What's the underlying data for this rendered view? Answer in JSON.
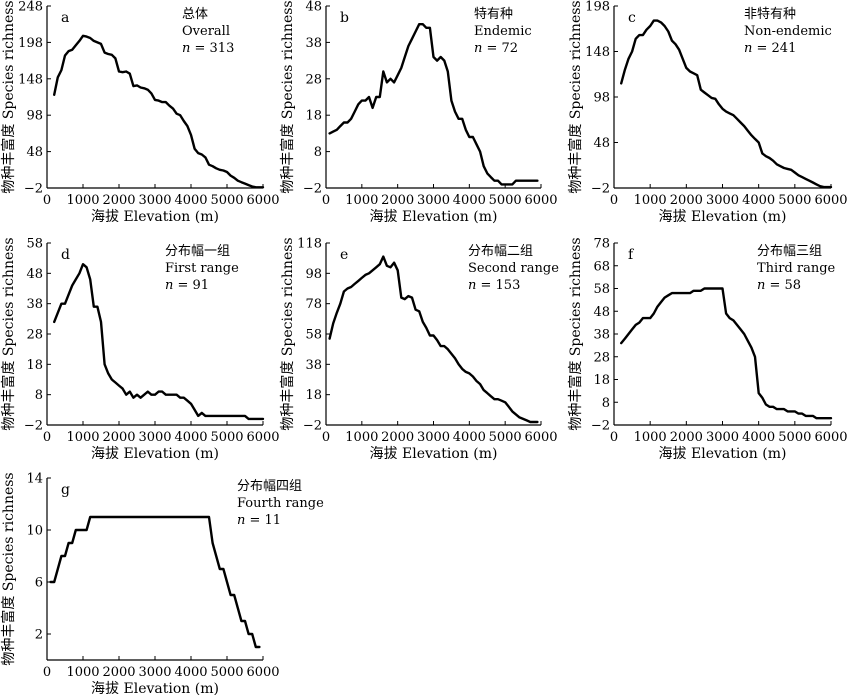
{
  "chart_data": [
    {
      "type": "line",
      "panel": "a",
      "title_zh": "总体",
      "title_en": "Overall",
      "n_label": "n",
      "n_value": "= 313",
      "xlabel": "海拔 Elevation (m)",
      "ylabel": "物种丰富度 Species richness",
      "xlim": [
        0,
        6000
      ],
      "ylim": [
        -2,
        248
      ],
      "xticks": [
        0,
        1000,
        2000,
        3000,
        4000,
        5000,
        6000
      ],
      "yticks": [
        -2,
        48,
        98,
        148,
        198,
        248
      ],
      "x": [
        200,
        300,
        400,
        500,
        600,
        700,
        800,
        900,
        1000,
        1100,
        1200,
        1300,
        1400,
        1500,
        1600,
        1700,
        1800,
        1900,
        2000,
        2100,
        2200,
        2300,
        2400,
        2500,
        2600,
        2700,
        2800,
        2900,
        3000,
        3100,
        3200,
        3300,
        3400,
        3500,
        3600,
        3700,
        3800,
        3900,
        4000,
        4100,
        4200,
        4300,
        4400,
        4500,
        4600,
        4700,
        4800,
        4900,
        5000,
        5100,
        5200,
        5300,
        5400,
        5500,
        5600,
        5700,
        5800,
        5900,
        6000
      ],
      "y": [
        126,
        150,
        160,
        180,
        186,
        188,
        194,
        200,
        207,
        206,
        204,
        200,
        198,
        196,
        184,
        182,
        181,
        176,
        158,
        157,
        158,
        155,
        138,
        139,
        136,
        135,
        133,
        128,
        119,
        118,
        116,
        116,
        111,
        107,
        100,
        98,
        90,
        83,
        71,
        52,
        46,
        44,
        40,
        30,
        28,
        25,
        23,
        22,
        20,
        15,
        12,
        8,
        6,
        4,
        2,
        0,
        -1,
        -1,
        -1
      ]
    },
    {
      "type": "line",
      "panel": "b",
      "title_zh": "特有种",
      "title_en": "Endemic",
      "n_label": "n",
      "n_value": "= 72",
      "xlabel": "海拔 Elevation (m)",
      "ylabel": "物种丰富度 Species richness",
      "xlim": [
        0,
        6000
      ],
      "ylim": [
        -2,
        48
      ],
      "xticks": [
        0,
        1000,
        2000,
        3000,
        4000,
        5000,
        6000
      ],
      "yticks": [
        -2,
        8,
        18,
        28,
        38,
        48
      ],
      "x": [
        100,
        200,
        300,
        400,
        500,
        600,
        700,
        800,
        900,
        1000,
        1100,
        1200,
        1300,
        1400,
        1500,
        1600,
        1700,
        1800,
        1900,
        2000,
        2100,
        2200,
        2300,
        2400,
        2500,
        2600,
        2700,
        2800,
        2900,
        3000,
        3100,
        3200,
        3300,
        3400,
        3500,
        3600,
        3700,
        3800,
        3900,
        4000,
        4100,
        4200,
        4300,
        4400,
        4500,
        4600,
        4700,
        4800,
        4900,
        5000,
        5100,
        5200,
        5300,
        5400,
        5500,
        5600,
        5700,
        5800,
        5900
      ],
      "y": [
        13,
        13.5,
        14,
        15,
        16,
        16,
        17,
        19,
        21,
        22,
        22,
        23,
        20,
        23,
        23,
        30,
        27,
        28,
        27,
        29,
        31,
        34,
        37,
        39,
        41,
        43,
        43,
        42,
        42,
        34,
        33,
        34,
        33,
        30,
        22,
        19,
        17,
        17,
        14,
        12,
        12,
        10,
        8,
        4,
        2,
        1,
        0,
        0,
        -1,
        -1,
        -1,
        -1,
        0,
        0,
        0,
        0,
        0,
        0,
        0
      ]
    },
    {
      "type": "line",
      "panel": "c",
      "title_zh": "非特有种",
      "title_en": "Non-endemic",
      "n_label": "n",
      "n_value": "= 241",
      "xlabel": "海拔 Elevation (m)",
      "ylabel": "物种丰富度 Species richness",
      "xlim": [
        0,
        6000
      ],
      "ylim": [
        -2,
        198
      ],
      "xticks": [
        0,
        1000,
        2000,
        3000,
        4000,
        5000,
        6000
      ],
      "yticks": [
        -2,
        48,
        98,
        148,
        198
      ],
      "x": [
        200,
        300,
        400,
        500,
        600,
        700,
        800,
        900,
        1000,
        1100,
        1200,
        1300,
        1400,
        1500,
        1600,
        1700,
        1800,
        1900,
        2000,
        2100,
        2200,
        2300,
        2400,
        2500,
        2600,
        2700,
        2800,
        2900,
        3000,
        3100,
        3200,
        3300,
        3400,
        3500,
        3600,
        3700,
        3800,
        3900,
        4000,
        4100,
        4200,
        4300,
        4400,
        4500,
        4600,
        4700,
        4800,
        4900,
        5000,
        5100,
        5200,
        5300,
        5400,
        5500,
        5600,
        5700,
        5800,
        5900,
        6000
      ],
      "y": [
        113,
        128,
        140,
        148,
        162,
        166,
        166,
        172,
        176,
        182,
        182,
        180,
        176,
        170,
        160,
        156,
        150,
        140,
        130,
        126,
        124,
        122,
        106,
        103,
        100,
        97,
        96,
        90,
        85,
        82,
        80,
        78,
        74,
        70,
        66,
        61,
        56,
        52,
        48,
        36,
        33,
        31,
        28,
        24,
        22,
        20,
        19,
        18,
        15,
        12,
        10,
        8,
        6,
        4,
        2,
        0,
        -1,
        -1,
        -1
      ]
    },
    {
      "type": "line",
      "panel": "d",
      "title_zh": "分布幅一组",
      "title_en": "First range",
      "n_label": "n",
      "n_value": "= 91",
      "xlabel": "海拔 Elevation (m)",
      "ylabel": "物种丰富度 Species richness",
      "xlim": [
        0,
        6000
      ],
      "ylim": [
        -2,
        58
      ],
      "xticks": [
        0,
        1000,
        2000,
        3000,
        4000,
        5000,
        6000
      ],
      "yticks": [
        -2,
        8,
        18,
        28,
        38,
        48,
        58
      ],
      "x": [
        200,
        300,
        400,
        500,
        600,
        700,
        800,
        900,
        1000,
        1100,
        1200,
        1300,
        1400,
        1500,
        1600,
        1700,
        1800,
        1900,
        2000,
        2100,
        2200,
        2300,
        2400,
        2500,
        2600,
        2700,
        2800,
        2900,
        3000,
        3100,
        3200,
        3300,
        3400,
        3500,
        3600,
        3700,
        3800,
        3900,
        4000,
        4100,
        4200,
        4300,
        4400,
        4500,
        4600,
        4700,
        4800,
        4900,
        5000,
        5100,
        5200,
        5300,
        5400,
        5500,
        5600,
        5700,
        5800,
        5900,
        6000
      ],
      "y": [
        32,
        35,
        38,
        38,
        41,
        44,
        46,
        48,
        51,
        50,
        46,
        37,
        37,
        32,
        18,
        15,
        13,
        12,
        11,
        10,
        8,
        9,
        7,
        8,
        7,
        8,
        9,
        8,
        8,
        9,
        9,
        8,
        8,
        8,
        8,
        7,
        7,
        6,
        5,
        3,
        1,
        2,
        1,
        1,
        1,
        1,
        1,
        1,
        1,
        1,
        1,
        1,
        1,
        1,
        0,
        0,
        0,
        0,
        0
      ]
    },
    {
      "type": "line",
      "panel": "e",
      "title_zh": "分布幅二组",
      "title_en": "Second range",
      "n_label": "n",
      "n_value": "= 153",
      "xlabel": "海拔 Elevation (m)",
      "ylabel": "物种丰富度 Species richness",
      "xlim": [
        0,
        6000
      ],
      "ylim": [
        -2,
        118
      ],
      "xticks": [
        0,
        1000,
        2000,
        3000,
        4000,
        5000,
        6000
      ],
      "yticks": [
        -2,
        18,
        38,
        58,
        78,
        98,
        118
      ],
      "x": [
        100,
        200,
        300,
        400,
        500,
        600,
        700,
        800,
        900,
        1000,
        1100,
        1200,
        1300,
        1400,
        1500,
        1600,
        1700,
        1800,
        1900,
        2000,
        2100,
        2200,
        2300,
        2400,
        2500,
        2600,
        2700,
        2800,
        2900,
        3000,
        3100,
        3200,
        3300,
        3400,
        3500,
        3600,
        3700,
        3800,
        3900,
        4000,
        4100,
        4200,
        4300,
        4400,
        4500,
        4600,
        4700,
        4800,
        4900,
        5000,
        5100,
        5200,
        5300,
        5400,
        5500,
        5600,
        5700,
        5800,
        5900
      ],
      "y": [
        55,
        65,
        72,
        78,
        86,
        88,
        89,
        91,
        93,
        95,
        97,
        98,
        100,
        102,
        104,
        109,
        103,
        102,
        105,
        100,
        82,
        81,
        83,
        82,
        74,
        73,
        66,
        62,
        57,
        57,
        54,
        50,
        50,
        48,
        45,
        42,
        38,
        35,
        33,
        32,
        30,
        27,
        25,
        21,
        19,
        17,
        15,
        15,
        14,
        13,
        10,
        7,
        5,
        3,
        2,
        1,
        0,
        0,
        0
      ]
    },
    {
      "type": "line",
      "panel": "f",
      "title_zh": "分布幅三组",
      "title_en": "Third range",
      "n_label": "n",
      "n_value": "= 58",
      "xlabel": "海拔 Elevation (m)",
      "ylabel": "物种丰富度 Species richness",
      "xlim": [
        0,
        6000
      ],
      "ylim": [
        -2,
        78
      ],
      "xticks": [
        0,
        1000,
        2000,
        3000,
        4000,
        5000,
        6000
      ],
      "yticks": [
        -2,
        8,
        18,
        28,
        38,
        48,
        58,
        68,
        78
      ],
      "x": [
        200,
        300,
        400,
        500,
        600,
        700,
        800,
        900,
        1000,
        1100,
        1200,
        1300,
        1400,
        1500,
        1600,
        1700,
        1800,
        1900,
        2000,
        2100,
        2200,
        2300,
        2400,
        2500,
        2600,
        2700,
        2800,
        2900,
        3000,
        3100,
        3200,
        3300,
        3400,
        3500,
        3600,
        3700,
        3800,
        3900,
        4000,
        4100,
        4200,
        4300,
        4400,
        4500,
        4600,
        4700,
        4800,
        4900,
        5000,
        5100,
        5200,
        5300,
        5400,
        5500,
        5600,
        5700,
        5800,
        5900,
        6000
      ],
      "y": [
        34,
        36,
        38,
        40,
        42,
        43,
        45,
        45,
        45,
        47,
        50,
        52,
        54,
        55,
        56,
        56,
        56,
        56,
        56,
        56,
        57,
        57,
        57,
        58,
        58,
        58,
        58,
        58,
        58,
        47,
        45,
        44,
        42,
        40,
        38,
        35,
        32,
        28,
        12,
        10,
        7,
        6,
        6,
        5,
        5,
        5,
        4,
        4,
        4,
        3,
        3,
        2,
        2,
        2,
        1,
        1,
        1,
        1,
        1
      ]
    },
    {
      "type": "line",
      "panel": "g",
      "title_zh": "分布幅四组",
      "title_en": "Fourth range",
      "n_label": "n",
      "n_value": "= 11",
      "xlabel": "海拔 Elevation (m)",
      "ylabel": "物种丰富度 Species richness",
      "xlim": [
        0,
        6000
      ],
      "ylim": [
        0,
        14
      ],
      "xticks": [
        0,
        1000,
        2000,
        3000,
        4000,
        5000,
        6000
      ],
      "yticks": [
        2,
        6,
        10,
        14
      ],
      "x": [
        100,
        200,
        300,
        400,
        500,
        600,
        700,
        800,
        900,
        1000,
        1100,
        1200,
        1300,
        1400,
        1500,
        1600,
        1700,
        1800,
        1900,
        2000,
        2100,
        2200,
        2300,
        2400,
        2500,
        2600,
        2700,
        2800,
        2900,
        3000,
        3100,
        3200,
        3300,
        3400,
        3500,
        3600,
        3700,
        3800,
        3900,
        4000,
        4100,
        4200,
        4300,
        4400,
        4500,
        4600,
        4700,
        4800,
        4900,
        5000,
        5100,
        5200,
        5300,
        5400,
        5500,
        5600,
        5700,
        5800,
        5900
      ],
      "y": [
        6,
        6,
        7,
        8,
        8,
        9,
        9,
        10,
        10,
        10,
        10,
        11,
        11,
        11,
        11,
        11,
        11,
        11,
        11,
        11,
        11,
        11,
        11,
        11,
        11,
        11,
        11,
        11,
        11,
        11,
        11,
        11,
        11,
        11,
        11,
        11,
        11,
        11,
        11,
        11,
        11,
        11,
        11,
        11,
        11,
        9,
        8,
        7,
        7,
        6,
        5,
        5,
        4,
        3,
        3,
        2,
        2,
        1,
        1
      ]
    }
  ]
}
